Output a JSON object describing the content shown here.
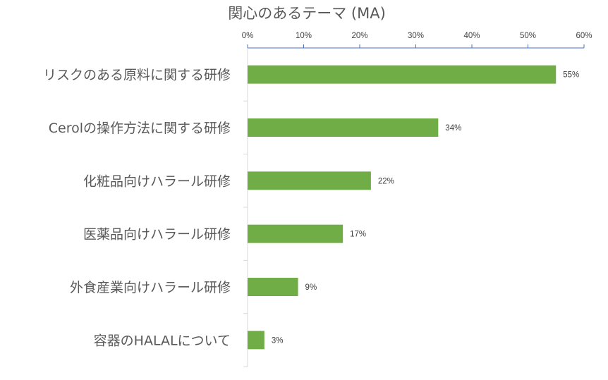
{
  "chart_data": {
    "type": "bar",
    "orientation": "horizontal",
    "title": "関心のあるテーマ (MA)",
    "categories": [
      "リスクのある原料に関する研修",
      "Cerolの操作方法に関する研修",
      "化粧品向けハラール研修",
      "医薬品向けハラール研修",
      "外食産業向けハラール研修",
      "容器のHALALについて"
    ],
    "values": [
      55,
      34,
      22,
      17,
      9,
      3
    ],
    "data_labels": [
      "55%",
      "34%",
      "22%",
      "17%",
      "9%",
      "3%"
    ],
    "xlim": [
      0,
      60
    ],
    "ticks": [
      0,
      10,
      20,
      30,
      40,
      50,
      60
    ],
    "tick_labels": [
      "0%",
      "10%",
      "20%",
      "30%",
      "40%",
      "50%",
      "60%"
    ],
    "axis_position": "top",
    "grid": false,
    "legend": "none",
    "colors": {
      "bar": "#70AD47",
      "axis": "#4472C4",
      "category_axis": "#D9D9D9",
      "text": "#595959"
    }
  }
}
